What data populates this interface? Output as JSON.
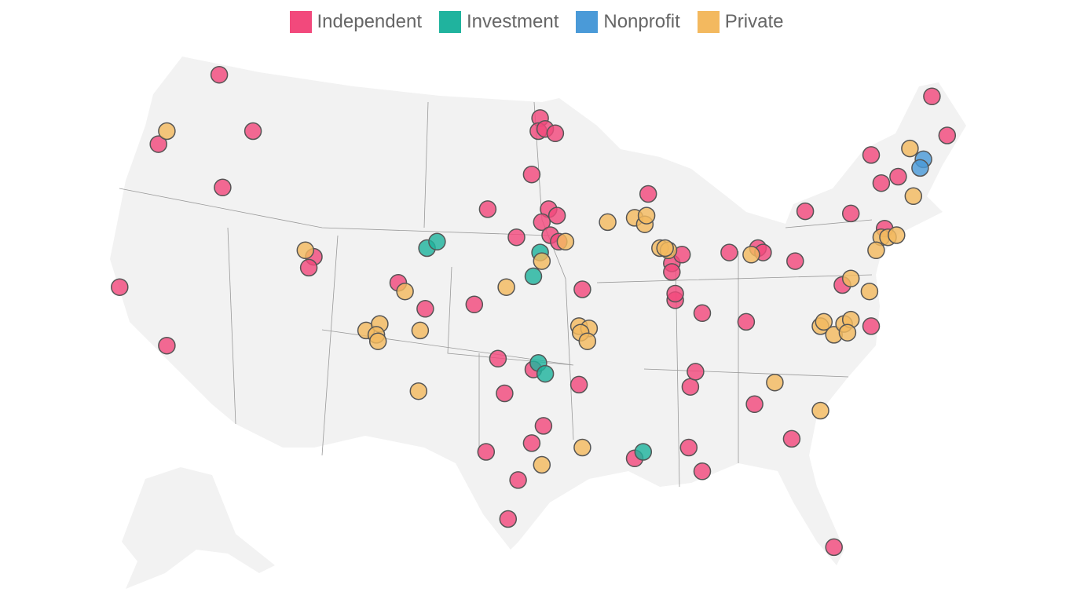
{
  "legend": [
    {
      "key": "independent",
      "label": "Independent",
      "color": "#f2497c"
    },
    {
      "key": "investment",
      "label": "Investment",
      "color": "#20b39e"
    },
    {
      "key": "nonprofit",
      "label": "Nonprofit",
      "color": "#4a9ad8"
    },
    {
      "key": "private",
      "label": "Private",
      "color": "#f3b95f"
    }
  ],
  "map": {
    "region": "United States",
    "base_color": "#f2f2f2",
    "border_color": "#999999"
  },
  "points": {
    "independent": [
      [
        -116.6,
        47.6
      ],
      [
        -120.2,
        44.4
      ],
      [
        -114.6,
        45.0
      ],
      [
        -116.4,
        42.4
      ],
      [
        -122.5,
        37.8
      ],
      [
        -119.7,
        35.1
      ],
      [
        -111.0,
        39.2
      ],
      [
        -111.3,
        38.7
      ],
      [
        -106.0,
        38.0
      ],
      [
        -104.4,
        36.8
      ],
      [
        -101.5,
        37.0
      ],
      [
        -100.7,
        41.4
      ],
      [
        -99.0,
        40.1
      ],
      [
        -98.1,
        43.0
      ],
      [
        -97.6,
        45.6
      ],
      [
        -97.7,
        45.0
      ],
      [
        -97.3,
        45.1
      ],
      [
        -96.7,
        44.9
      ],
      [
        -97.1,
        41.4
      ],
      [
        -96.6,
        41.1
      ],
      [
        -97.5,
        40.8
      ],
      [
        -97.0,
        40.2
      ],
      [
        -96.5,
        39.9
      ],
      [
        -91.2,
        42.1
      ],
      [
        -95.1,
        37.7
      ],
      [
        -100.1,
        34.5
      ],
      [
        -99.7,
        32.9
      ],
      [
        -98.0,
        34.0
      ],
      [
        -95.3,
        33.3
      ],
      [
        -97.4,
        31.4
      ],
      [
        -98.1,
        30.6
      ],
      [
        -100.8,
        30.2
      ],
      [
        -98.9,
        28.9
      ],
      [
        -99.5,
        27.1
      ],
      [
        -92.0,
        29.9
      ],
      [
        -88.8,
        30.4
      ],
      [
        -88.0,
        29.3
      ],
      [
        -88.7,
        33.2
      ],
      [
        -88.4,
        33.9
      ],
      [
        -88.0,
        36.6
      ],
      [
        -85.4,
        36.2
      ],
      [
        -84.9,
        32.4
      ],
      [
        -82.7,
        30.8
      ],
      [
        -80.2,
        25.8
      ],
      [
        -89.8,
        38.9
      ],
      [
        -89.8,
        38.5
      ],
      [
        -89.2,
        39.3
      ],
      [
        -89.6,
        37.2
      ],
      [
        -89.6,
        37.5
      ],
      [
        -86.4,
        39.4
      ],
      [
        -84.7,
        39.6
      ],
      [
        -84.4,
        39.4
      ],
      [
        -82.5,
        39.0
      ],
      [
        -81.9,
        41.3
      ],
      [
        -79.2,
        41.2
      ],
      [
        -78.0,
        43.9
      ],
      [
        -77.4,
        42.6
      ],
      [
        -76.4,
        42.9
      ],
      [
        -74.4,
        46.6
      ],
      [
        -73.5,
        44.8
      ],
      [
        -77.2,
        40.5
      ],
      [
        -79.7,
        37.9
      ],
      [
        -78.0,
        36.0
      ]
    ],
    "investment": [
      [
        -104.3,
        39.6
      ],
      [
        -103.7,
        39.9
      ],
      [
        -97.6,
        39.4
      ],
      [
        -98.0,
        38.3
      ],
      [
        -97.7,
        34.3
      ],
      [
        -97.3,
        33.8
      ],
      [
        -91.5,
        30.2
      ]
    ],
    "nonprofit": [
      [
        -74.9,
        43.7
      ],
      [
        -75.1,
        43.3
      ]
    ],
    "private": [
      [
        -119.7,
        45.0
      ],
      [
        -111.5,
        39.5
      ],
      [
        -105.6,
        37.6
      ],
      [
        -107.9,
        35.8
      ],
      [
        -107.1,
        36.1
      ],
      [
        -107.3,
        35.6
      ],
      [
        -107.2,
        35.3
      ],
      [
        -104.7,
        35.8
      ],
      [
        -104.8,
        33.0
      ],
      [
        -99.6,
        37.8
      ],
      [
        -97.5,
        39.0
      ],
      [
        -96.1,
        39.9
      ],
      [
        -93.6,
        40.8
      ],
      [
        -92.0,
        41.0
      ],
      [
        -91.4,
        40.7
      ],
      [
        -91.3,
        41.1
      ],
      [
        -90.5,
        39.6
      ],
      [
        -90.0,
        39.5
      ],
      [
        -90.2,
        39.6
      ],
      [
        -95.3,
        36.0
      ],
      [
        -94.7,
        35.9
      ],
      [
        -95.2,
        35.7
      ],
      [
        -94.8,
        35.3
      ],
      [
        -95.1,
        30.4
      ],
      [
        -97.5,
        29.6
      ],
      [
        -83.7,
        33.4
      ],
      [
        -81.0,
        32.1
      ],
      [
        -85.1,
        39.3
      ],
      [
        -75.7,
        44.2
      ],
      [
        -75.5,
        42.0
      ],
      [
        -77.4,
        40.1
      ],
      [
        -77.0,
        40.1
      ],
      [
        -76.5,
        40.2
      ],
      [
        -77.7,
        39.5
      ],
      [
        -79.2,
        38.2
      ],
      [
        -78.1,
        37.6
      ],
      [
        -81.0,
        36.0
      ],
      [
        -80.8,
        36.2
      ],
      [
        -80.2,
        35.6
      ],
      [
        -79.6,
        36.1
      ],
      [
        -79.2,
        36.3
      ],
      [
        -79.4,
        35.7
      ]
    ]
  }
}
